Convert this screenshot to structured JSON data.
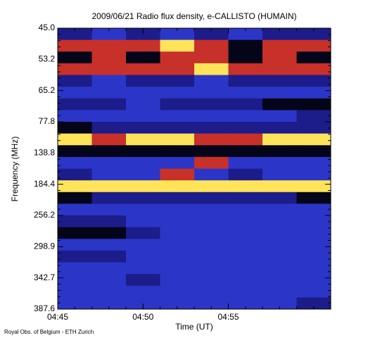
{
  "chart_data": {
    "type": "spectrogram",
    "title": "2009/06/21  Radio flux density, e-CALLISTO (HUMAIN)",
    "xlabel": "Time (UT)",
    "ylabel": "Frequency (MHz)",
    "footer": "Royal Obs. of Belgium - ETH Zurich",
    "xlim": [
      "04:45",
      "05:01"
    ],
    "xticks": [
      "04:45",
      "04:50",
      "04:55"
    ],
    "yticks": [
      {
        "value": 45,
        "label": "45.0"
      },
      53.2,
      65.2,
      77.8,
      138.8,
      184.4,
      256.2,
      298.9,
      342.7,
      387.6
    ],
    "colormap": [
      "#05051a",
      "#1c1c8a",
      "#2b36c8",
      "#c8302a",
      "#ffe45a"
    ],
    "z": [
      [
        1,
        2,
        1,
        2,
        1,
        2,
        1,
        1
      ],
      [
        3,
        3,
        3,
        4,
        3,
        0,
        3,
        3
      ],
      [
        0,
        3,
        0,
        3,
        3,
        0,
        3,
        0
      ],
      [
        3,
        3,
        3,
        3,
        4,
        3,
        3,
        3
      ],
      [
        1,
        2,
        1,
        1,
        2,
        1,
        1,
        1
      ],
      [
        2,
        2,
        2,
        2,
        2,
        2,
        2,
        2
      ],
      [
        1,
        1,
        2,
        1,
        1,
        1,
        0,
        0
      ],
      [
        2,
        2,
        2,
        2,
        2,
        2,
        2,
        1
      ],
      [
        0,
        1,
        1,
        1,
        1,
        1,
        1,
        1
      ],
      [
        4,
        3,
        4,
        4,
        3,
        3,
        4,
        4
      ],
      [
        0,
        0,
        0,
        0,
        0,
        0,
        0,
        0
      ],
      [
        2,
        2,
        2,
        2,
        3,
        2,
        2,
        2
      ],
      [
        1,
        2,
        2,
        3,
        2,
        1,
        2,
        2
      ],
      [
        4,
        4,
        4,
        4,
        4,
        4,
        4,
        4
      ],
      [
        0,
        1,
        1,
        1,
        1,
        1,
        1,
        0
      ],
      [
        2,
        2,
        2,
        2,
        2,
        2,
        2,
        2
      ],
      [
        1,
        1,
        2,
        2,
        2,
        2,
        2,
        2
      ],
      [
        0,
        0,
        1,
        2,
        2,
        2,
        2,
        2
      ],
      [
        2,
        2,
        2,
        2,
        2,
        2,
        2,
        2
      ],
      [
        1,
        1,
        2,
        2,
        2,
        2,
        2,
        2
      ],
      [
        2,
        2,
        2,
        2,
        2,
        2,
        2,
        2
      ],
      [
        2,
        2,
        1,
        2,
        2,
        2,
        2,
        2
      ],
      [
        2,
        2,
        2,
        2,
        2,
        2,
        2,
        2
      ],
      [
        2,
        2,
        2,
        2,
        2,
        2,
        2,
        1
      ]
    ]
  }
}
